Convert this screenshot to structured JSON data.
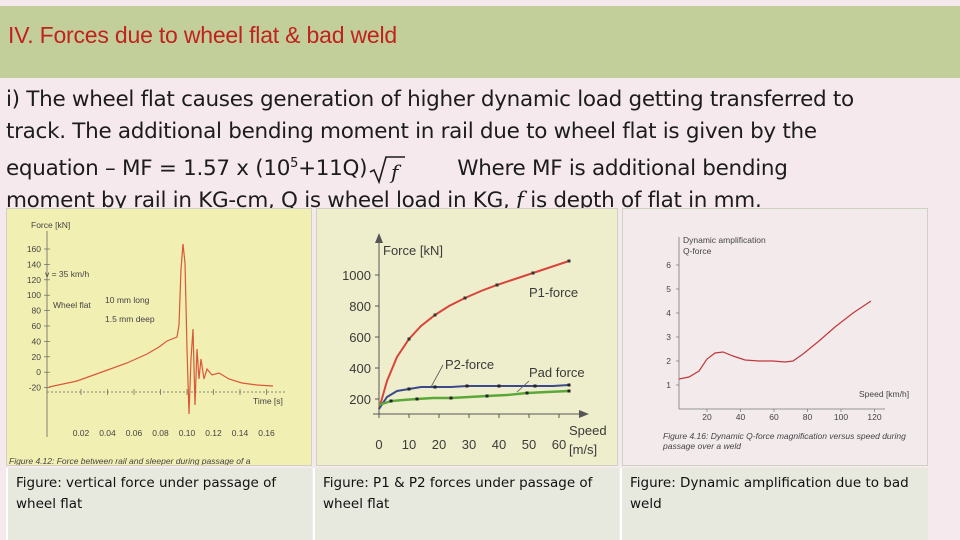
{
  "slide": {
    "title": "IV. Forces due to wheel flat & bad weld",
    "para": {
      "l1": "i)  The wheel flat causes generation of higher dynamic load getting transferred to",
      "l2": "track.  The additional bending moment in rail due to wheel flat is given by the",
      "l3a": "equation –   MF = 1.57 x (10",
      "l3sup": "5",
      "l3b": "+11Q)",
      "l3sqrt": "f",
      "l3c": "Where MF is additional bending",
      "l4a": "moment by rail in KG-cm, Q is wheel load in KG,",
      "l4f": "f",
      "l4b": "is depth of flat in mm."
    }
  },
  "figures": [
    {
      "caption": "Figure: vertical force under passage of wheel flat",
      "ylabel": "Force [kN]",
      "xlabel": "Time [s]",
      "note_speed": "v = 35 km/h",
      "note_flat": "Wheel flat",
      "note_long": "10 mm long",
      "note_deep": "1.5 mm deep",
      "caption_in_figure": "Figure 4.12: Force between rail and sleeper during passage of a",
      "yticks": [
        "160",
        "140",
        "120",
        "100",
        "80",
        "60",
        "40",
        "20",
        "0",
        "-20"
      ],
      "xticks": [
        "0.02",
        "0.04",
        "0.06",
        "0.08",
        "0.10",
        "0.12",
        "0.14",
        "0.16"
      ],
      "colors": {
        "curve": "#d9573a",
        "bg": "#f2efb2"
      }
    },
    {
      "caption": "Figure: P1 & P2 forces under passage of wheel flat",
      "ylabel": "Force [kN]",
      "xlabel": "Speed",
      "xunit": "[m/s]",
      "label_p1": "P1-force",
      "label_p2": "P2-force",
      "label_pad": "Pad force",
      "yticks": [
        "1000",
        "800",
        "600",
        "400",
        "200"
      ],
      "xticks": [
        "0",
        "10",
        "20",
        "30",
        "40",
        "50",
        "60"
      ],
      "colors": {
        "p1": "#d8443a",
        "p2": "#3a4a8c",
        "pad": "#5aa83a"
      }
    },
    {
      "caption": "Figure: Dynamic amplification due to bad weld",
      "legend_1": "Dynamic amplification",
      "legend_2": "Q-force",
      "xlabel": "Speed [km/h]",
      "yticks": [
        "6",
        "5",
        "4",
        "3",
        "2",
        "1"
      ],
      "xticks": [
        "20",
        "40",
        "60",
        "80",
        "100",
        "120"
      ],
      "caption_in_figure_1": "Figure 4.16: Dynamic Q-force magnification versus speed during",
      "caption_in_figure_2": "passage over a weld",
      "colors": {
        "curve": "#c0393a"
      }
    }
  ]
}
